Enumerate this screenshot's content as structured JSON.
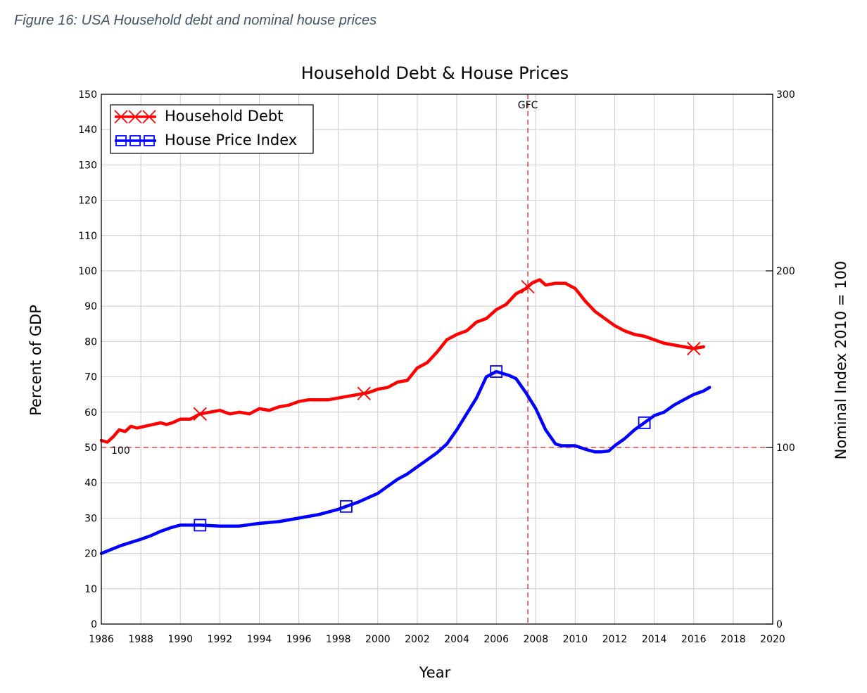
{
  "caption": "Figure 16: USA Household debt and nominal house prices",
  "colors": {
    "debt": "#ff0000",
    "hpi": "#0000ff",
    "grid": "#cccccc",
    "ref": "#e02020"
  },
  "chart_data": {
    "type": "line",
    "title": "Household Debt & House Prices",
    "xlabel": "Year",
    "ylabel": "Percent of GDP",
    "y2label": "Nominal Index 2010 = 100",
    "xlim": [
      1986,
      2020
    ],
    "ylim": [
      0,
      150
    ],
    "y2lim": [
      0,
      300
    ],
    "x_ticks": [
      "1986",
      "1988",
      "1990",
      "1992",
      "1994",
      "1996",
      "1998",
      "2000",
      "2002",
      "2004",
      "2006",
      "2008",
      "2010",
      "2012",
      "2014",
      "2016",
      "2018",
      "2020"
    ],
    "y_ticks": [
      "0",
      "10",
      "20",
      "30",
      "40",
      "50",
      "60",
      "70",
      "80",
      "90",
      "100",
      "110",
      "120",
      "130",
      "140",
      "150"
    ],
    "y2_ticks": [
      "0",
      "100",
      "200",
      "300"
    ],
    "legend": {
      "position": "top-left",
      "entries": [
        "Household Debt",
        "House Price Index"
      ]
    },
    "annotations": {
      "gfc": {
        "label": "GFC",
        "x": 2007.6
      },
      "ref_line": {
        "label": "100",
        "y": 50
      }
    },
    "series": [
      {
        "name": "Household Debt",
        "axis": "left",
        "marker": "x",
        "marker_x": [
          1991,
          1999.3,
          2007.6,
          2016
        ],
        "x": [
          1986,
          1986.3,
          1986.6,
          1986.9,
          1987.2,
          1987.5,
          1987.8,
          1988.2,
          1988.6,
          1989,
          1989.3,
          1989.6,
          1990,
          1990.5,
          1991,
          1991.5,
          1992,
          1992.5,
          1993,
          1993.5,
          1994,
          1994.5,
          1995,
          1995.5,
          1996,
          1996.5,
          1997,
          1997.5,
          1998,
          1998.5,
          1999,
          1999.5,
          2000,
          2000.5,
          2001,
          2001.5,
          2002,
          2002.5,
          2003,
          2003.5,
          2004,
          2004.5,
          2005,
          2005.5,
          2006,
          2006.5,
          2007,
          2007.5,
          2007.8,
          2008,
          2008.2,
          2008.5,
          2009,
          2009.5,
          2010,
          2010.5,
          2011,
          2011.5,
          2012,
          2012.5,
          2013,
          2013.5,
          2014,
          2014.5,
          2015,
          2015.5,
          2016,
          2016.5
        ],
        "y": [
          52,
          51.5,
          53,
          55,
          54.5,
          56,
          55.5,
          56,
          56.5,
          57,
          56.5,
          57,
          58,
          58,
          59.5,
          60,
          60.5,
          59.5,
          60,
          59.5,
          61,
          60.5,
          61.5,
          62,
          63,
          63.5,
          63.5,
          63.5,
          64,
          64.5,
          65,
          65.5,
          66.5,
          67,
          68.5,
          69,
          72.5,
          74,
          77,
          80.5,
          82,
          83,
          85.5,
          86.5,
          89,
          90.5,
          93.5,
          95,
          96.5,
          97,
          97.5,
          96,
          96.5,
          96.5,
          95,
          91.5,
          88.5,
          86.5,
          84.5,
          83,
          82,
          81.5,
          80.5,
          79.5,
          79,
          78.5,
          78,
          78.5
        ]
      },
      {
        "name": "House Price Index",
        "axis": "right",
        "marker": "square",
        "marker_x": [
          1991,
          1998.4,
          2006,
          2013.5
        ],
        "x": [
          1986,
          1987,
          1988,
          1988.5,
          1989,
          1989.5,
          1990,
          1991,
          1992,
          1993,
          1994,
          1995,
          1996,
          1997,
          1998,
          1998.5,
          1999,
          1999.5,
          2000,
          2000.5,
          2001,
          2001.5,
          2002,
          2002.5,
          2003,
          2003.5,
          2004,
          2004.5,
          2005,
          2005.5,
          2006,
          2006.3,
          2006.6,
          2007,
          2007.5,
          2008,
          2008.5,
          2009,
          2009.3,
          2009.6,
          2010,
          2010.5,
          2011,
          2011.3,
          2011.7,
          2012,
          2012.5,
          2013,
          2013.5,
          2014,
          2014.5,
          2015,
          2015.5,
          2016,
          2016.5,
          2016.8
        ],
        "y": [
          40,
          44.5,
          48,
          50,
          52.5,
          54.5,
          56,
          56,
          55.5,
          55.5,
          57,
          58,
          60,
          62,
          65,
          67,
          69,
          71.5,
          74,
          78,
          82,
          85,
          89,
          93,
          97,
          102,
          110,
          119,
          128,
          140,
          143,
          142,
          141,
          139,
          131,
          122,
          110,
          102,
          101,
          101,
          101,
          99,
          97.5,
          97.5,
          98,
          101,
          105,
          110,
          114,
          118,
          120,
          124,
          127,
          130,
          132,
          134
        ]
      }
    ]
  }
}
